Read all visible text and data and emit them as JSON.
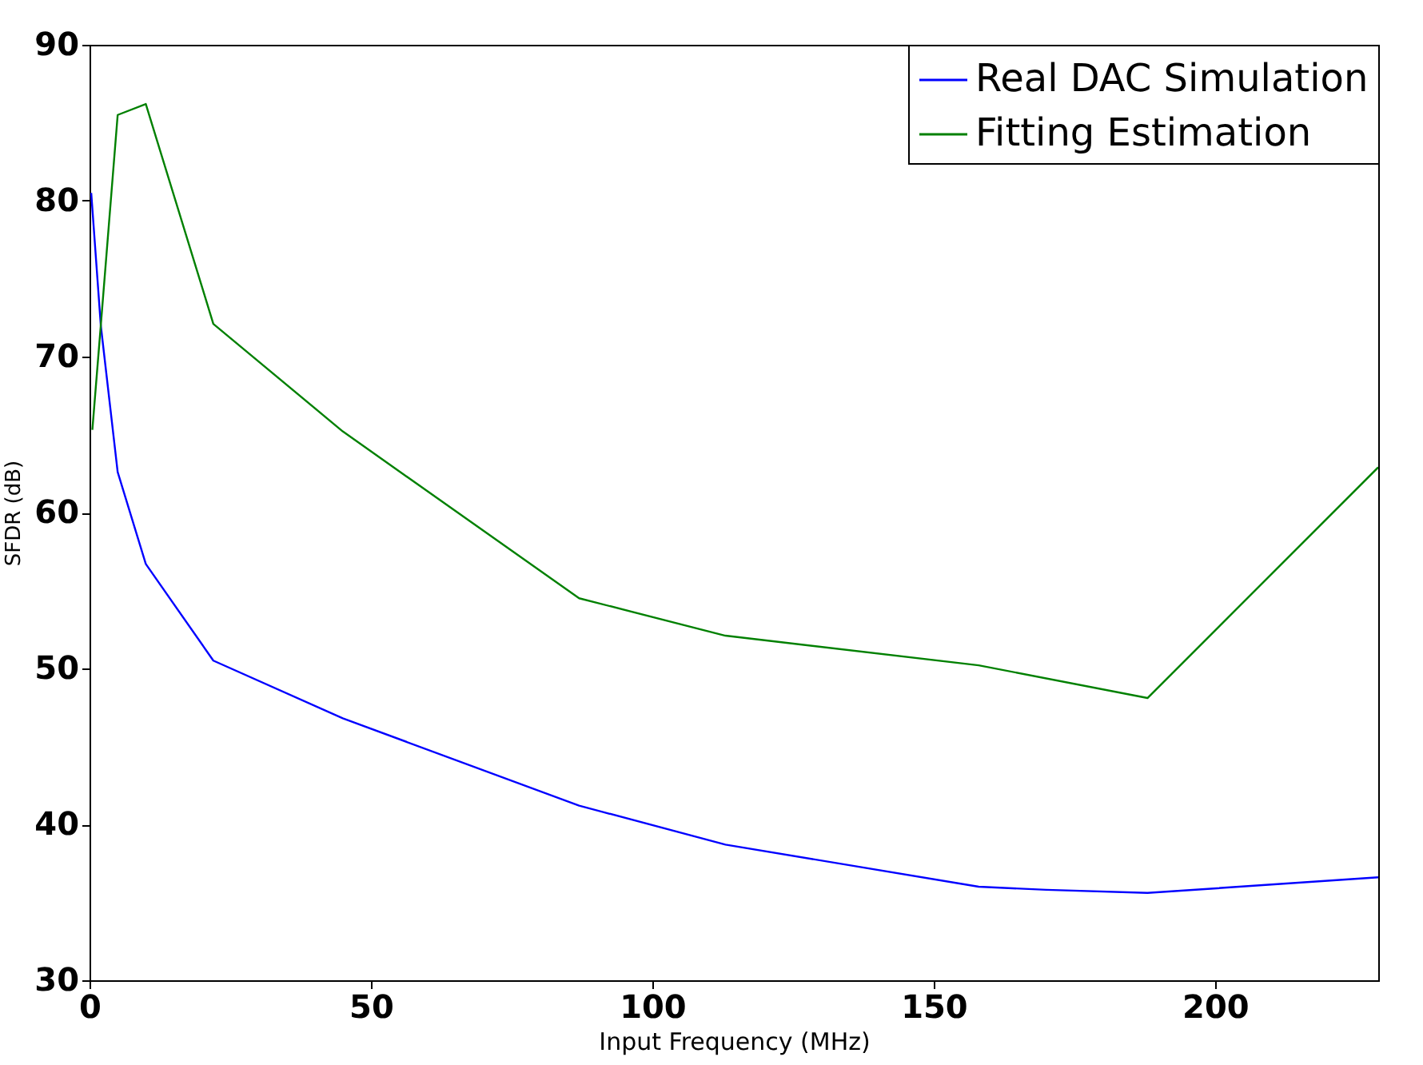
{
  "chart_data": {
    "type": "line",
    "xlabel": "Input Frequency (MHz)",
    "ylabel": "SFDR (dB)",
    "xlim": [
      0,
      229
    ],
    "xticks": [
      0,
      50,
      100,
      150,
      200
    ],
    "ylim": [
      30,
      90
    ],
    "yticks": [
      30,
      40,
      50,
      60,
      70,
      80,
      90
    ],
    "grid": false,
    "legend": "top right",
    "line_style": "solid",
    "marker": "none",
    "series": [
      {
        "name": "Real DAC Simulation",
        "color": "#0000ff",
        "x": [
          0.3,
          2,
          5,
          10,
          22,
          45,
          87,
          113,
          158,
          170,
          188,
          229
        ],
        "values": [
          80.5,
          72,
          62.6,
          56.7,
          50.5,
          46.8,
          41.2,
          38.7,
          36,
          35.8,
          35.6,
          36.6
        ]
      },
      {
        "name": "Fitting Estimation",
        "color": "#008000",
        "x": [
          0.5,
          2,
          5,
          10,
          22,
          45,
          87,
          113,
          158,
          188,
          229
        ],
        "values": [
          65.3,
          72,
          85.5,
          86.2,
          72.1,
          65.2,
          54.5,
          52.1,
          50.2,
          48.1,
          62.9
        ]
      }
    ]
  }
}
